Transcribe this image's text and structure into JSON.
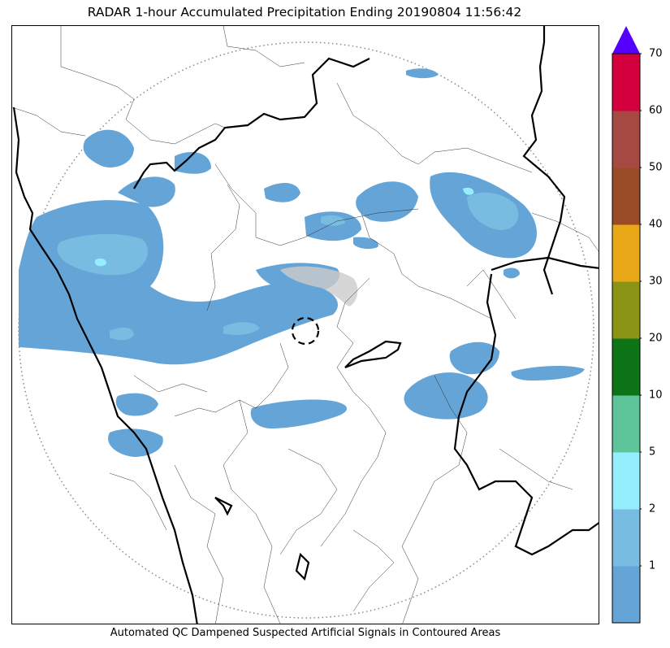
{
  "title": "RADAR 1-hour Accumulated Precipitation Ending 20190804 11:56:42",
  "footer": "Automated QC Dampened Suspected Artificial Signals in Contoured Areas",
  "colorbar": {
    "ticks": [
      "1",
      "2",
      "5",
      "10",
      "20",
      "30",
      "40",
      "50",
      "60",
      "70"
    ],
    "colors": [
      "#64a4d6",
      "#78bce2",
      "#95eefe",
      "#5ec49a",
      "#0e7418",
      "#8c9416",
      "#e8a818",
      "#9a4c26",
      "#a54942",
      "#d4003e"
    ],
    "extend_color": "#5500ff"
  },
  "legend_colors": {
    "rain_light": "#64a4d6",
    "rain_medium": "#78bce2",
    "rain_high": "#95eefe",
    "qc_area": "#cccccc"
  }
}
